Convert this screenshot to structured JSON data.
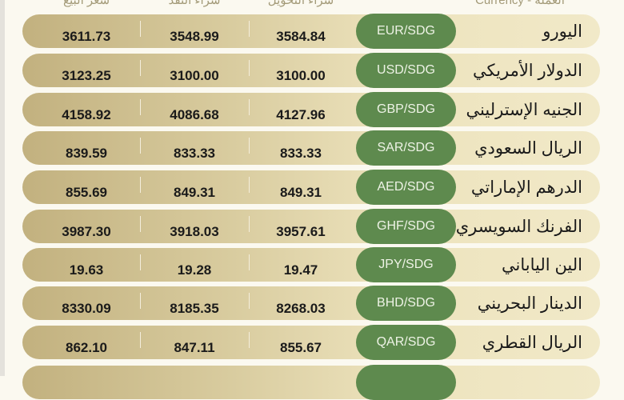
{
  "headers": {
    "sell": "سعر البيع",
    "cash_buy": "شراء النقد",
    "transfer_buy": "شراء التحويل",
    "currency": "Currency - العملة"
  },
  "rows": [
    {
      "name": "اليورو",
      "pair": "EUR/SDG",
      "transfer": "3584.84",
      "cash": "3548.99",
      "sell": "3611.73"
    },
    {
      "name": "الدولار الأمريكي",
      "pair": "USD/SDG",
      "transfer": "3100.00",
      "cash": "3100.00",
      "sell": "3123.25"
    },
    {
      "name": "الجنيه الإسترليني",
      "pair": "GBP/SDG",
      "transfer": "4127.96",
      "cash": "4086.68",
      "sell": "4158.92"
    },
    {
      "name": "الريال السعودي",
      "pair": "SAR/SDG",
      "transfer": "833.33",
      "cash": "833.33",
      "sell": "839.59"
    },
    {
      "name": "الدرهم الإماراتي",
      "pair": "AED/SDG",
      "transfer": "849.31",
      "cash": "849.31",
      "sell": "855.69"
    },
    {
      "name": "الفرنك السويسري",
      "pair": "GHF/SDG",
      "transfer": "3957.61",
      "cash": "3918.03",
      "sell": "3987.30"
    },
    {
      "name": "الين الياباني",
      "pair": "JPY/SDG",
      "transfer": "19.47",
      "cash": "19.28",
      "sell": "19.63"
    },
    {
      "name": "الدينار البحريني",
      "pair": "BHD/SDG",
      "transfer": "8268.03",
      "cash": "8185.35",
      "sell": "8330.09"
    },
    {
      "name": "الريال القطري",
      "pair": "QAR/SDG",
      "transfer": "855.67",
      "cash": "847.11",
      "sell": "862.10"
    }
  ],
  "colors": {
    "pill": "#5e8a4e",
    "row_gold": "#d8cb9e",
    "background": "#fbf9f0"
  }
}
